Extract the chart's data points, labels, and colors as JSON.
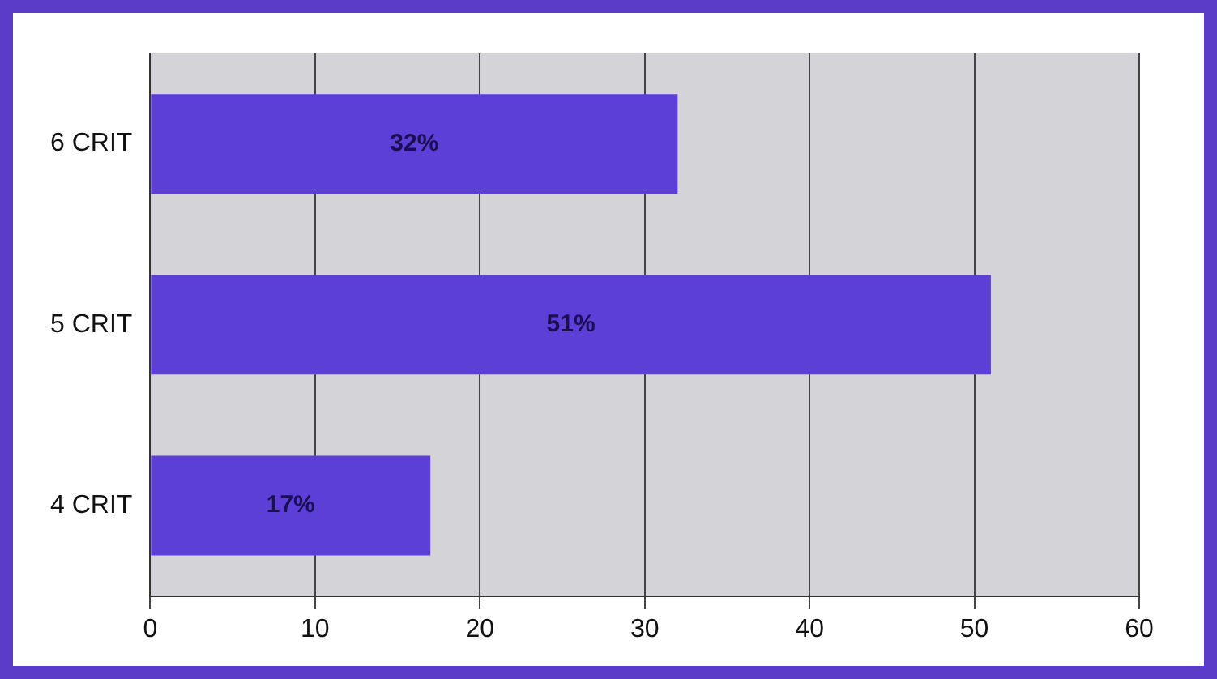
{
  "chart_data": {
    "type": "bar",
    "orientation": "horizontal",
    "categories": [
      "6 CRIT",
      "5 CRIT",
      "4 CRIT"
    ],
    "values": [
      32,
      51,
      17
    ],
    "value_labels": [
      "32%",
      "51%",
      "17%"
    ],
    "color": "#5b3fd6",
    "xlim": [
      0,
      60
    ],
    "xticks": [
      0,
      10,
      20,
      30,
      40,
      50,
      60
    ],
    "grid": "x",
    "legend": false
  }
}
